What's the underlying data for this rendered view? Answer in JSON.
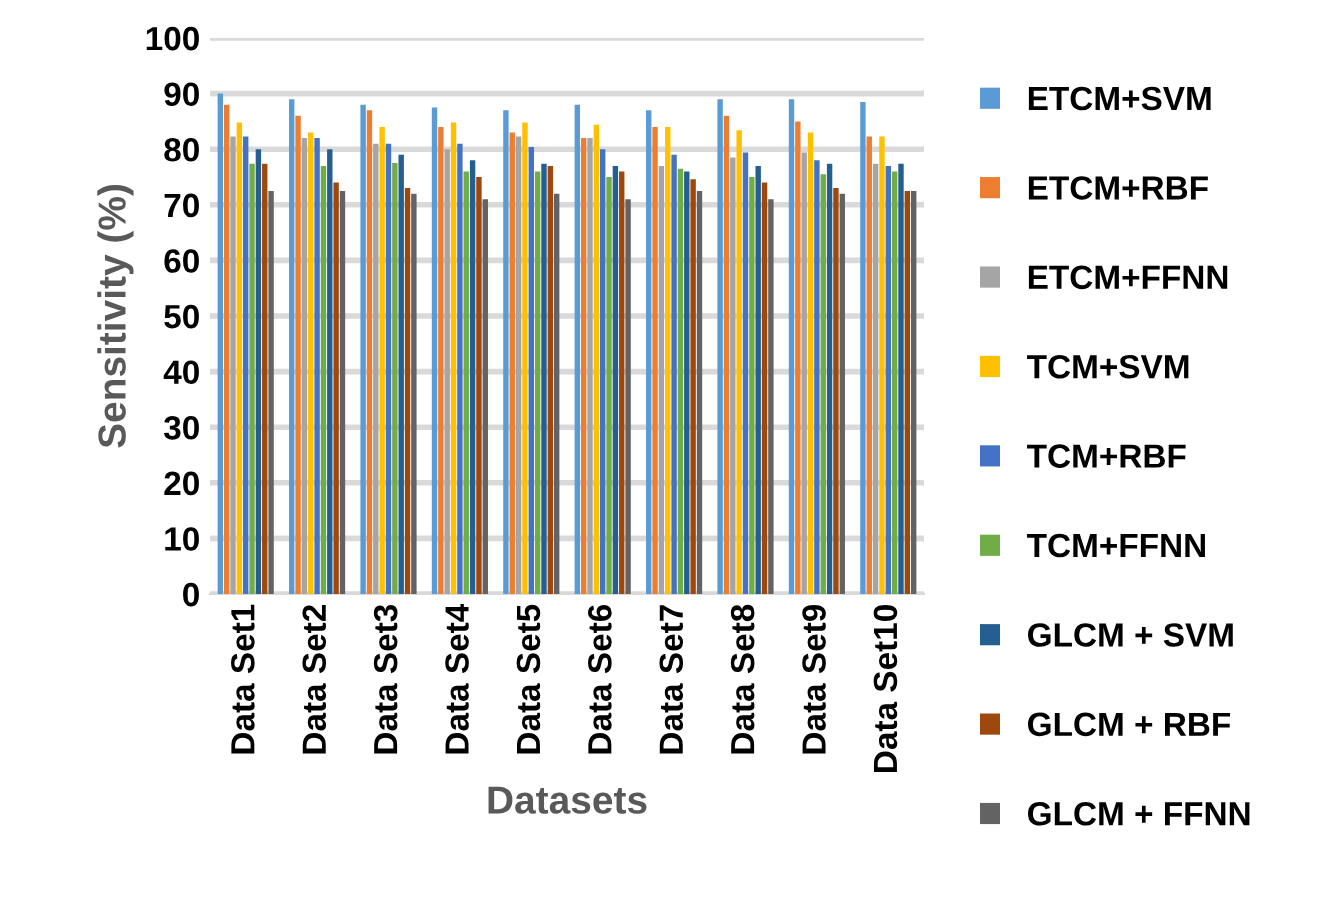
{
  "chart_data": {
    "type": "bar",
    "xlabel": "Datasets",
    "ylabel": "Sensitivity (%)",
    "categories": [
      "Data Set1",
      "Data Set2",
      "Data Set3",
      "Data Set4",
      "Data Set5",
      "Data Set6",
      "Data Set7",
      "Data Set8",
      "Data Set9",
      "Data Set10"
    ],
    "series": [
      {
        "name": "ETCM+SVM",
        "color": "#5b9bd5",
        "values": [
          90,
          89,
          88,
          87.5,
          87,
          88,
          87,
          89,
          89,
          88.5
        ]
      },
      {
        "name": "ETCM+RBF",
        "color": "#ed7d31",
        "values": [
          88,
          86,
          87,
          84,
          83,
          82,
          84,
          86,
          85,
          82.3
        ]
      },
      {
        "name": "ETCM+FFNN",
        "color": "#a5a5a5",
        "values": [
          82.3,
          82,
          81,
          80,
          82.3,
          82,
          77,
          78.5,
          79.4,
          77.4
        ]
      },
      {
        "name": "TCM+SVM",
        "color": "#ffc000",
        "values": [
          84.8,
          83,
          84,
          84.8,
          84.8,
          84.4,
          84,
          83.4,
          83,
          82.3
        ]
      },
      {
        "name": "TCM+RBF",
        "color": "#4472c4",
        "values": [
          82.3,
          82,
          81,
          81,
          80.4,
          80,
          79,
          79.4,
          78,
          77
        ]
      },
      {
        "name": "TCM+FFNN",
        "color": "#70ad47",
        "values": [
          77.4,
          77,
          77.5,
          76,
          76,
          75,
          76.5,
          75,
          75.5,
          76
        ]
      },
      {
        "name": "GLCM + SVM",
        "color": "#255e91",
        "values": [
          80,
          80,
          79,
          78,
          77.4,
          77,
          76,
          77,
          77.4,
          77.4
        ]
      },
      {
        "name": "GLCM + RBF",
        "color": "#9e480e",
        "values": [
          77.4,
          74,
          73,
          75,
          77,
          76,
          74.6,
          74,
          73,
          72.5
        ]
      },
      {
        "name": "GLCM + FFNN",
        "color": "#636363",
        "values": [
          72.5,
          72.5,
          72,
          71,
          72,
          71,
          72.5,
          71,
          72,
          72.5
        ]
      }
    ],
    "ylim": [
      0,
      100
    ],
    "yticks": [
      0,
      10,
      20,
      30,
      40,
      50,
      60,
      70,
      80,
      90,
      100
    ],
    "grid": "y",
    "legend": "right"
  }
}
